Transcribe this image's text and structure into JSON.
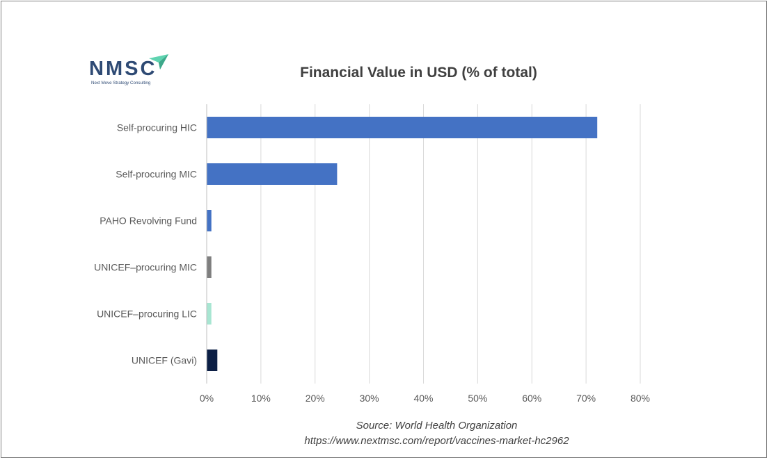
{
  "logo": {
    "letters": "NMSC",
    "tagline": "Next Move Strategy Consulting"
  },
  "source": {
    "line1": "Source: World Health Organization",
    "line2": "https://www.nextmsc.com/report/vaccines-market-hc2962"
  },
  "colors": {
    "default_bar": "#4472c4",
    "grid": "#d9d9d9",
    "text": "#595959"
  },
  "chart_data": {
    "type": "bar",
    "orientation": "horizontal",
    "title": "Financial Value in USD (% of total)",
    "categories": [
      "Self-procuring HIC",
      "Self-procuring MIC",
      "PAHO Revolving Fund",
      "UNICEF–procuring MIC",
      "UNICEF–procuring LIC",
      "UNICEF (Gavi)"
    ],
    "values": [
      72,
      24,
      0.8,
      0.8,
      0.8,
      1.9
    ],
    "bar_colors": [
      "#4472c4",
      "#4472c4",
      "#4472c4",
      "#7f7f7f",
      "#a8e6d2",
      "#0c1f45"
    ],
    "xlim": [
      0,
      80
    ],
    "xticks": [
      "0%",
      "10%",
      "20%",
      "30%",
      "40%",
      "50%",
      "60%",
      "70%",
      "80%"
    ],
    "xlabel": "",
    "ylabel": "",
    "grid": true,
    "legend": "none"
  }
}
